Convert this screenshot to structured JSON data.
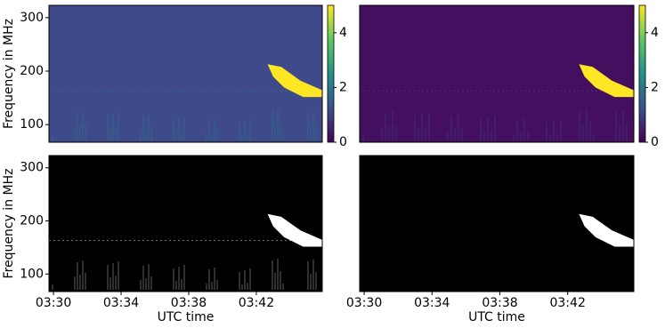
{
  "chart_data": [
    {
      "type": "heatmap",
      "ylabel": "Frequency in MHz",
      "background": "#3e4a89",
      "xlim": [
        "03:29:44",
        "03:45:54"
      ],
      "ylim": [
        67,
        323
      ],
      "yticks": [
        100,
        200,
        300
      ],
      "colorbar": {
        "lim": [
          0,
          5
        ],
        "ticks": [
          0,
          2,
          4
        ],
        "colors": [
          "#440154",
          "#3b528b",
          "#21918c",
          "#5ec962",
          "#fde725"
        ]
      }
    },
    {
      "type": "heatmap",
      "background": "#440f5f",
      "xlim": [
        "03:29:44",
        "03:45:54"
      ],
      "ylim": [
        67,
        323
      ],
      "colorbar": {
        "lim": [
          0,
          5
        ],
        "ticks": [
          0,
          2,
          4
        ],
        "colors": [
          "#440154",
          "#3b528b",
          "#21918c",
          "#5ec962",
          "#fde725"
        ]
      }
    },
    {
      "type": "heatmap",
      "ylabel": "Frequency in MHz",
      "xlabel": "UTC time",
      "background": "#000000",
      "xlim": [
        "03:29:44",
        "03:45:54"
      ],
      "ylim": [
        67,
        323
      ],
      "yticks": [
        100,
        200,
        300
      ],
      "xticks": [
        "03:30",
        "03:34",
        "03:38",
        "03:42"
      ]
    },
    {
      "type": "heatmap",
      "xlabel": "UTC time",
      "background": "#000000",
      "xlim": [
        "03:29:44",
        "03:45:54"
      ],
      "ylim": [
        67,
        323
      ],
      "xticks": [
        "03:30",
        "03:34",
        "03:38",
        "03:42"
      ]
    }
  ]
}
